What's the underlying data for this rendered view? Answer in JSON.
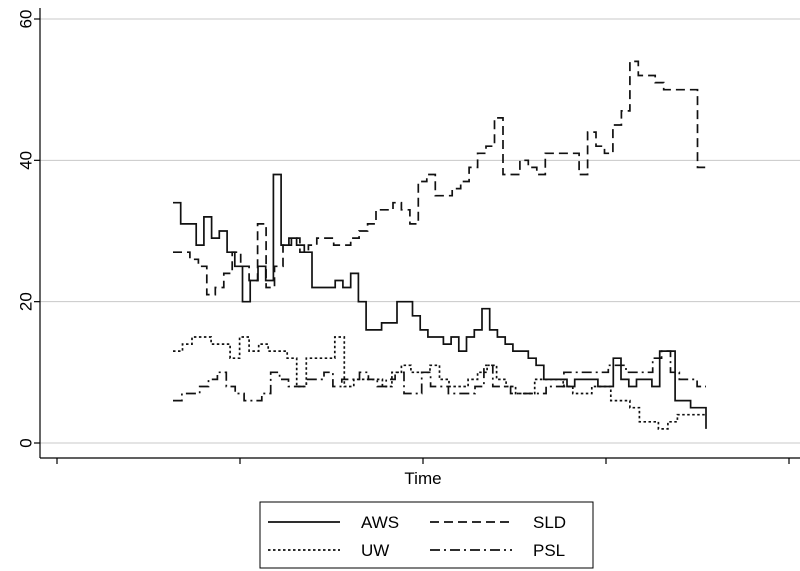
{
  "chart_data": {
    "type": "line",
    "xlabel": "Time",
    "ylabel": "",
    "title": "",
    "ylim": [
      0,
      60
    ],
    "yticks": [
      0,
      20,
      40,
      60
    ],
    "x_ticks_labeled": false,
    "grid": "horizontal",
    "legend_placement": "bottom",
    "series": [
      {
        "name": "AWS",
        "dash": "solid",
        "x": [
          0,
          2,
          3,
          4,
          5,
          6,
          7,
          8,
          9,
          10,
          11,
          12,
          13,
          14,
          15,
          16,
          17,
          18,
          19,
          20,
          21,
          22,
          23,
          24,
          25,
          26,
          27,
          28,
          29,
          30,
          31,
          32,
          33,
          34,
          35,
          36,
          37,
          38,
          39,
          40,
          41,
          42,
          43,
          44,
          45,
          46,
          47,
          48,
          49,
          50,
          51,
          52,
          53,
          54,
          55,
          56,
          57,
          58,
          59,
          60,
          61,
          62,
          63,
          64,
          65,
          66,
          67,
          68,
          69,
          70
        ],
        "values": [
          34,
          31,
          31,
          28,
          32,
          29,
          30,
          27,
          25,
          20,
          23,
          25,
          23,
          38,
          28,
          29,
          28,
          27,
          22,
          22,
          22,
          23,
          22,
          24,
          20,
          16,
          16,
          17,
          17,
          20,
          20,
          18,
          16,
          15,
          15,
          14,
          15,
          13,
          15,
          16,
          19,
          16,
          15,
          14,
          13,
          13,
          12,
          11,
          9,
          9,
          9,
          8,
          9,
          9,
          9,
          8,
          8,
          12,
          9,
          8,
          9,
          9,
          8,
          13,
          13,
          6,
          6,
          5,
          5,
          2
        ],
        "x_positions": [
          0,
          1,
          2,
          3,
          4,
          5,
          6,
          7,
          8,
          9,
          10,
          11,
          12,
          13,
          14,
          15,
          16,
          17,
          18,
          19,
          20,
          21,
          22,
          23,
          24,
          25,
          26,
          27,
          28,
          29,
          30,
          31,
          32,
          33,
          34,
          35,
          36,
          37,
          38,
          39,
          40,
          41,
          42,
          43,
          44,
          45,
          46,
          47,
          48,
          49,
          50,
          51,
          52,
          53,
          54,
          55,
          56,
          57,
          58,
          59,
          60,
          61,
          62,
          63,
          64,
          65,
          66,
          67,
          68,
          69
        ]
      },
      {
        "name": "SLD",
        "dash": "dashed",
        "values": [
          27,
          27,
          26,
          25,
          21,
          22,
          24,
          27,
          25,
          23,
          31,
          22,
          25,
          28,
          29,
          27,
          28,
          29,
          29,
          28,
          28,
          29,
          30,
          31,
          33,
          33,
          34,
          33,
          31,
          37,
          38,
          35,
          35,
          36,
          37,
          39,
          41,
          42,
          46,
          38,
          38,
          40,
          39,
          38,
          41,
          41,
          41,
          41,
          38,
          44,
          42,
          41,
          45,
          47,
          54,
          52,
          52,
          51,
          50,
          50,
          50,
          50,
          39,
          39
        ],
        "x_positions": [
          0,
          1,
          2,
          3,
          4,
          5,
          6,
          7,
          8,
          9,
          10,
          11,
          12,
          13,
          14,
          15,
          16,
          17,
          18,
          19,
          20,
          21,
          22,
          23,
          24,
          25,
          26,
          27,
          28,
          29,
          30,
          31,
          32,
          33,
          34,
          35,
          36,
          37,
          38,
          39,
          40,
          41,
          42,
          43,
          44,
          45,
          46,
          47,
          48,
          49,
          50,
          51,
          52,
          53,
          54,
          55,
          56,
          57,
          58,
          59,
          60,
          61,
          62,
          63
        ]
      },
      {
        "name": "UW",
        "dash": "dotted",
        "values": [
          13,
          14,
          15,
          15,
          14,
          14,
          12,
          15,
          13,
          14,
          13,
          13,
          12,
          8,
          12,
          12,
          12,
          15,
          8,
          9,
          9,
          9,
          8,
          10,
          11,
          10,
          10,
          11,
          9,
          8,
          8,
          9,
          10,
          11,
          9,
          8,
          7,
          7,
          9,
          9,
          9,
          8,
          7,
          7,
          8,
          8,
          6,
          6,
          5,
          3,
          3,
          2,
          3,
          4,
          4,
          4,
          4
        ],
        "x_positions": [
          0,
          1,
          2,
          3,
          4,
          5,
          6,
          7,
          8,
          9,
          10,
          11,
          12,
          13,
          14,
          15,
          16,
          17,
          18,
          19,
          20,
          21,
          22,
          23,
          24,
          25,
          26,
          27,
          28,
          29,
          30,
          31,
          32,
          33,
          34,
          35,
          36,
          37,
          38,
          39,
          40,
          41,
          42,
          43,
          44,
          45,
          46,
          47,
          48,
          49,
          50,
          51,
          52,
          53,
          54,
          55,
          56
        ]
      },
      {
        "name": "PSL",
        "dash": "dash-dot",
        "values": [
          6,
          7,
          7,
          8,
          9,
          10,
          8,
          7,
          6,
          6,
          7,
          10,
          9,
          8,
          8,
          9,
          9,
          10,
          8,
          9,
          9,
          10,
          9,
          8,
          9,
          10,
          7,
          7,
          10,
          8,
          8,
          7,
          7,
          7,
          8,
          11,
          8,
          8,
          7,
          7,
          7,
          7,
          8,
          8,
          10,
          10,
          10,
          10,
          10,
          11,
          11,
          10,
          10,
          10,
          12,
          13,
          10,
          9,
          9,
          8,
          8
        ],
        "x_positions": [
          0,
          1,
          2,
          3,
          4,
          5,
          6,
          7,
          8,
          9,
          10,
          11,
          12,
          13,
          14,
          15,
          16,
          17,
          18,
          19,
          20,
          21,
          22,
          23,
          24,
          25,
          26,
          27,
          28,
          29,
          30,
          31,
          32,
          33,
          34,
          35,
          36,
          37,
          38,
          39,
          40,
          41,
          42,
          43,
          44,
          45,
          46,
          47,
          48,
          49,
          50,
          51,
          52,
          53,
          54,
          55,
          56,
          57,
          58,
          59,
          60
        ]
      }
    ]
  }
}
